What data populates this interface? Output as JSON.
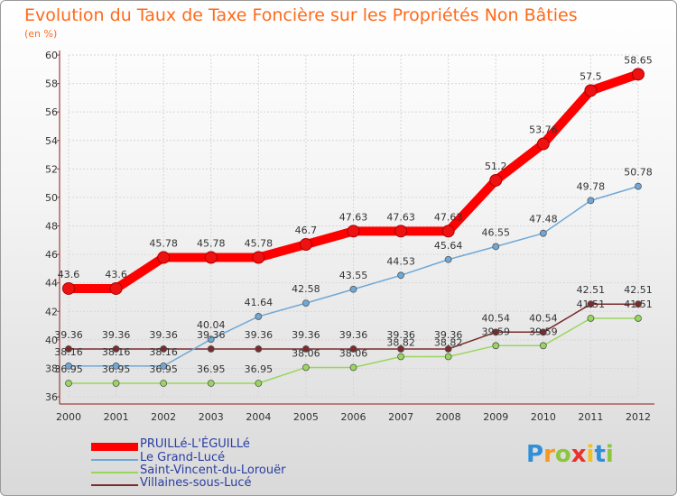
{
  "title": "Evolution du Taux de Taxe Foncière sur les Propriétés Non Bâties",
  "unit_label": "(en %)",
  "logo_text": "Proxiti",
  "chart_data": {
    "type": "line",
    "x": [
      "2000",
      "2001",
      "2002",
      "2003",
      "2004",
      "2005",
      "2006",
      "2007",
      "2008",
      "2009",
      "2010",
      "2011",
      "2012"
    ],
    "ylim": [
      36,
      60
    ],
    "yticks": [
      "36",
      "38",
      "40",
      "42",
      "44",
      "46",
      "48",
      "50",
      "52",
      "54",
      "56",
      "58",
      "60"
    ],
    "grid": true,
    "legend_position": "bottom-left",
    "series": [
      {
        "name": "PRUILLé-L'ÉGUILLé",
        "color": "#ff0000",
        "values": [
          43.6,
          43.6,
          45.78,
          45.78,
          45.78,
          46.7,
          47.63,
          47.63,
          47.63,
          51.2,
          53.76,
          57.5,
          58.65
        ],
        "labels": [
          "43.6",
          "43.6",
          "45.78",
          "45.78",
          "45.78",
          "46.7",
          "47.63",
          "47.63",
          "47.63",
          "51.2",
          "53.76",
          "57.5",
          "58.65"
        ]
      },
      {
        "name": "Le Grand-Lucé",
        "color": "#6fa8d6",
        "values": [
          38.16,
          38.16,
          38.16,
          40.04,
          41.64,
          42.58,
          43.55,
          44.53,
          45.64,
          46.55,
          47.48,
          49.78,
          50.78
        ],
        "labels": [
          "38.16",
          "38.16",
          "38.16",
          "40.04",
          "41.64",
          "42.58",
          "43.55",
          "44.53",
          "45.64",
          "46.55",
          "47.48",
          "49.78",
          "50.78"
        ]
      },
      {
        "name": "Saint-Vincent-du-Lorouër",
        "color": "#99d65c",
        "values": [
          36.95,
          36.95,
          36.95,
          36.95,
          36.95,
          38.06,
          38.06,
          38.82,
          38.82,
          39.59,
          39.59,
          41.51,
          41.51
        ],
        "labels": [
          "36.95",
          "36.95",
          "36.95",
          "36.95",
          "36.95",
          "38.06",
          "38.06",
          "38.82",
          "38.82",
          "39.59",
          "39.59",
          "41.51",
          "41.51"
        ]
      },
      {
        "name": "Villaines-sous-Lucé",
        "color": "#7a2b2b",
        "values": [
          39.36,
          39.36,
          39.36,
          39.36,
          39.36,
          39.36,
          39.36,
          39.36,
          39.36,
          40.54,
          40.54,
          42.51,
          42.51
        ],
        "labels": [
          "39.36",
          "39.36",
          "39.36",
          "39.36",
          "39.36",
          "39.36",
          "39.36",
          "39.36",
          "39.36",
          "40.54",
          "40.54",
          "42.51",
          "42.51"
        ]
      }
    ]
  }
}
